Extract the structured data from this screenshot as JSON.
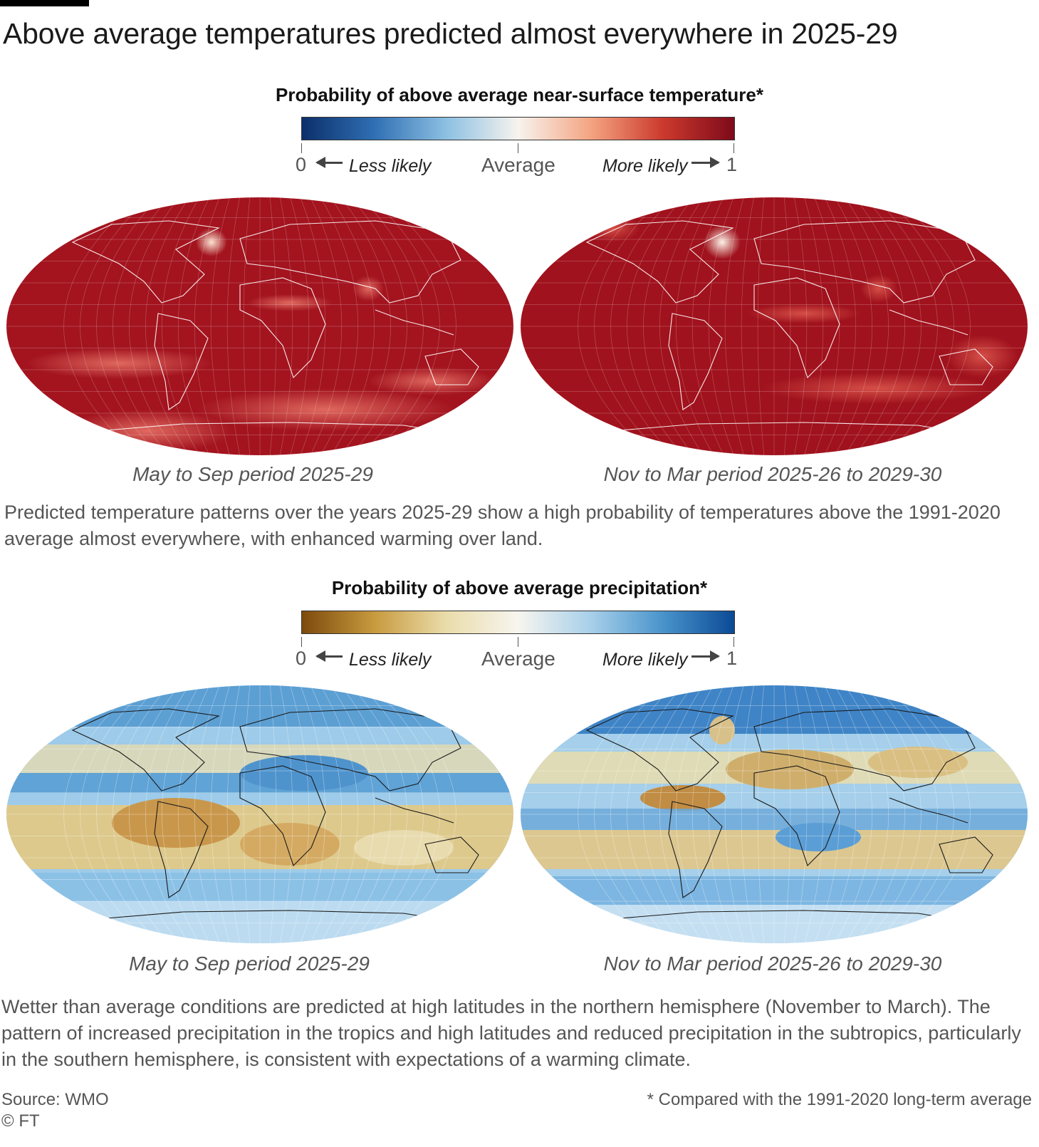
{
  "title": "Above average temperatures predicted almost everywhere in 2025-29",
  "temperature": {
    "legend_title": "Probability of above average near-surface temperature*",
    "scale_min": "0",
    "scale_max": "1",
    "less_label": "Less likely",
    "average_label": "Average",
    "more_label": "More likely",
    "gradient_colors": [
      "#0c2f6b",
      "#2f6fb3",
      "#8cc0e2",
      "#f7f3ee",
      "#f4a582",
      "#cc3a2e",
      "#7e0a1a"
    ],
    "map_left_caption": "May to Sep period 2025-29",
    "map_right_caption": "Nov to Mar period 2025-26 to 2029-30",
    "description": "Predicted temperature patterns over the years 2025-29 show a high probability of temperatures above the 1991-2020 average almost everywhere, with enhanced warming over land."
  },
  "precipitation": {
    "legend_title": "Probability of above average precipitation*",
    "scale_min": "0",
    "scale_max": "1",
    "less_label": "Less likely",
    "average_label": "Average",
    "more_label": "More likely",
    "gradient_colors": [
      "#7d4a0c",
      "#c79a3e",
      "#eadcaa",
      "#f7f5ef",
      "#a8d0ea",
      "#4a94cc",
      "#0b4a96"
    ],
    "map_left_caption": "May to Sep period 2025-29",
    "map_right_caption": "Nov to Mar period 2025-26 to 2029-30",
    "description": "Wetter than average conditions are predicted at high latitudes in the northern hemisphere (November to March). The pattern of increased precipitation in the tropics and high latitudes and reduced precipitation in the subtropics, particularly in the southern hemisphere, is consistent with expectations of a warming climate."
  },
  "source": "Source: WMO",
  "copyright": "© FT",
  "footnote": "* Compared with the 1991-2020 long-term average"
}
